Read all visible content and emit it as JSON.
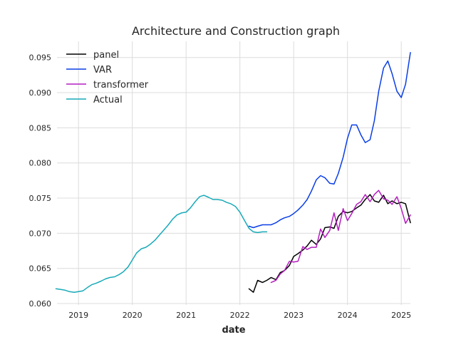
{
  "chart_data": {
    "type": "line",
    "title": "Architecture and Construction graph",
    "xlabel": "date",
    "ylabel": "",
    "xlim": [
      2018.6,
      2025.17
    ],
    "ylim": [
      0.0598,
      0.0973
    ],
    "grid": true,
    "legend_position": "top-left",
    "x_ticks": [
      2019,
      2020,
      2021,
      2022,
      2023,
      2024,
      2025
    ],
    "x_tick_labels": [
      "2019",
      "2020",
      "2021",
      "2022",
      "2023",
      "2024",
      "2025"
    ],
    "y_ticks": [
      0.06,
      0.065,
      0.07,
      0.075,
      0.08,
      0.085,
      0.09,
      0.095
    ],
    "y_tick_labels": [
      "0.060",
      "0.065",
      "0.070",
      "0.075",
      "0.080",
      "0.085",
      "0.090",
      "0.095"
    ],
    "series": [
      {
        "name": "panel",
        "color": "#000000",
        "x": [
          2022.17,
          2022.25,
          2022.33,
          2022.42,
          2022.5,
          2022.58,
          2022.67,
          2022.75,
          2022.83,
          2022.92,
          2023.0,
          2023.08,
          2023.17,
          2023.25,
          2023.33,
          2023.42,
          2023.5,
          2023.58,
          2023.67,
          2023.75,
          2023.83,
          2023.92,
          2024.0,
          2024.08,
          2024.17,
          2024.25,
          2024.33,
          2024.42,
          2024.5,
          2024.58,
          2024.67,
          2024.75,
          2024.83,
          2024.92,
          2025.0,
          2025.08,
          2025.17
        ],
        "y": [
          0.0621,
          0.0616,
          0.0633,
          0.063,
          0.0633,
          0.0637,
          0.0634,
          0.0644,
          0.0647,
          0.0654,
          0.0667,
          0.0671,
          0.0676,
          0.0682,
          0.069,
          0.0684,
          0.0692,
          0.0708,
          0.0709,
          0.0707,
          0.0724,
          0.0731,
          0.0729,
          0.0731,
          0.0736,
          0.074,
          0.0748,
          0.0755,
          0.0746,
          0.0744,
          0.0754,
          0.0742,
          0.0746,
          0.0742,
          0.0744,
          0.0742,
          0.0715
        ]
      },
      {
        "name": "VAR",
        "color": "#0a3ee6",
        "x": [
          2022.17,
          2022.25,
          2022.33,
          2022.42,
          2022.5,
          2022.58,
          2022.67,
          2022.75,
          2022.83,
          2022.92,
          2023.0,
          2023.08,
          2023.17,
          2023.25,
          2023.33,
          2023.42,
          2023.5,
          2023.58,
          2023.67,
          2023.75,
          2023.83,
          2023.92,
          2024.0,
          2024.08,
          2024.17,
          2024.25,
          2024.33,
          2024.42,
          2024.5,
          2024.58,
          2024.67,
          2024.75,
          2024.83,
          2024.92,
          2025.0,
          2025.08,
          2025.17
        ],
        "y": [
          0.071,
          0.0708,
          0.071,
          0.0712,
          0.0712,
          0.0712,
          0.0715,
          0.0719,
          0.0722,
          0.0724,
          0.0728,
          0.0733,
          0.074,
          0.0748,
          0.076,
          0.0776,
          0.0782,
          0.0779,
          0.0771,
          0.077,
          0.0785,
          0.0808,
          0.0835,
          0.0854,
          0.0854,
          0.084,
          0.0829,
          0.0833,
          0.086,
          0.0902,
          0.0935,
          0.0945,
          0.0927,
          0.0902,
          0.0893,
          0.0912,
          0.0957
        ]
      },
      {
        "name": "transformer",
        "color": "#b41fc0",
        "x": [
          2022.58,
          2022.67,
          2022.75,
          2022.83,
          2022.92,
          2023.0,
          2023.08,
          2023.17,
          2023.25,
          2023.33,
          2023.42,
          2023.5,
          2023.58,
          2023.67,
          2023.75,
          2023.83,
          2023.92,
          2024.0,
          2024.08,
          2024.17,
          2024.25,
          2024.33,
          2024.42,
          2024.5,
          2024.58,
          2024.67,
          2024.75,
          2024.83,
          2024.92,
          2025.0,
          2025.08,
          2025.17
        ],
        "y": [
          0.063,
          0.0633,
          0.0642,
          0.0647,
          0.066,
          0.0659,
          0.066,
          0.0681,
          0.0677,
          0.068,
          0.068,
          0.0706,
          0.0694,
          0.0704,
          0.0729,
          0.0704,
          0.0735,
          0.0718,
          0.0728,
          0.0741,
          0.0745,
          0.0755,
          0.0745,
          0.0755,
          0.0761,
          0.0749,
          0.0747,
          0.0741,
          0.0752,
          0.0735,
          0.0714,
          0.0726
        ]
      },
      {
        "name": "Actual",
        "color": "#17aab8",
        "x": [
          2018.58,
          2018.67,
          2018.75,
          2018.83,
          2018.92,
          2019.0,
          2019.08,
          2019.17,
          2019.25,
          2019.33,
          2019.42,
          2019.5,
          2019.58,
          2019.67,
          2019.75,
          2019.83,
          2019.92,
          2020.0,
          2020.08,
          2020.17,
          2020.25,
          2020.33,
          2020.42,
          2020.5,
          2020.58,
          2020.67,
          2020.75,
          2020.83,
          2020.92,
          2021.0,
          2021.08,
          2021.17,
          2021.25,
          2021.33,
          2021.42,
          2021.5,
          2021.58,
          2021.67,
          2021.75,
          2021.83,
          2021.92,
          2022.0,
          2022.08,
          2022.17,
          2022.25,
          2022.33,
          2022.42,
          2022.5
        ],
        "y": [
          0.0621,
          0.062,
          0.0619,
          0.0617,
          0.0616,
          0.0617,
          0.0618,
          0.0623,
          0.0627,
          0.0629,
          0.0632,
          0.0635,
          0.0637,
          0.0638,
          0.0641,
          0.0645,
          0.0652,
          0.0662,
          0.0672,
          0.0678,
          0.068,
          0.0684,
          0.069,
          0.0697,
          0.0704,
          0.0712,
          0.072,
          0.0726,
          0.0729,
          0.073,
          0.0736,
          0.0745,
          0.0752,
          0.0754,
          0.0751,
          0.0748,
          0.0748,
          0.0747,
          0.0744,
          0.0742,
          0.0738,
          0.073,
          0.0719,
          0.0707,
          0.0702,
          0.0701,
          0.0702,
          0.0702
        ]
      }
    ]
  }
}
